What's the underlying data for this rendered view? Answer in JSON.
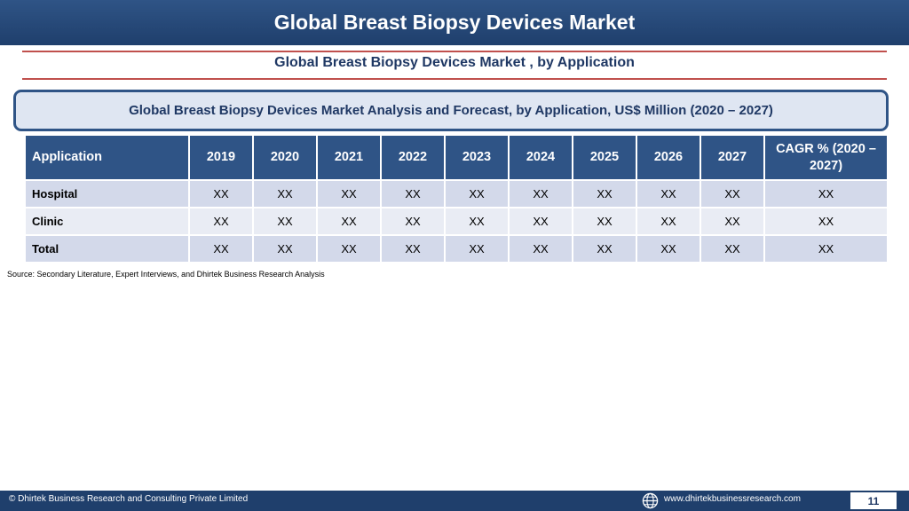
{
  "header": {
    "title": "Global Breast Biopsy Devices Market"
  },
  "subtitle": "Global Breast Biopsy Devices Market , by Application",
  "analysis_box": {
    "text": "Global Breast Biopsy Devices Market  Analysis and Forecast, by Application, US$ Million (2020 – 2027)"
  },
  "table": {
    "columns": [
      "Application",
      "2019",
      "2020",
      "2021",
      "2022",
      "2023",
      "2024",
      "2025",
      "2026",
      "2027",
      "CAGR % (2020 – 2027)"
    ],
    "rows": [
      {
        "label": "Hospital",
        "values": [
          "XX",
          "XX",
          "XX",
          "XX",
          "XX",
          "XX",
          "XX",
          "XX",
          "XX",
          "XX"
        ]
      },
      {
        "label": "Clinic",
        "values": [
          "XX",
          "XX",
          "XX",
          "XX",
          "XX",
          "XX",
          "XX",
          "XX",
          "XX",
          "XX"
        ]
      },
      {
        "label": "Total",
        "values": [
          "XX",
          "XX",
          "XX",
          "XX",
          "XX",
          "XX",
          "XX",
          "XX",
          "XX",
          "XX"
        ]
      }
    ]
  },
  "source": "Source: Secondary Literature, Expert Interviews, and Dhirtek Business Research Analysis",
  "footer": {
    "copyright": "© Dhirtek Business Research and Consulting Private Limited",
    "globe_icon": "globe-icon",
    "website": "www.dhirtekbusinessresearch.com",
    "page_number": "11"
  },
  "colors": {
    "primary": "#2f5486",
    "accent_line": "#c0504d",
    "row_odd": "#d3d9ea",
    "row_even": "#e9ecf4",
    "box_fill": "#dfe6f2"
  }
}
